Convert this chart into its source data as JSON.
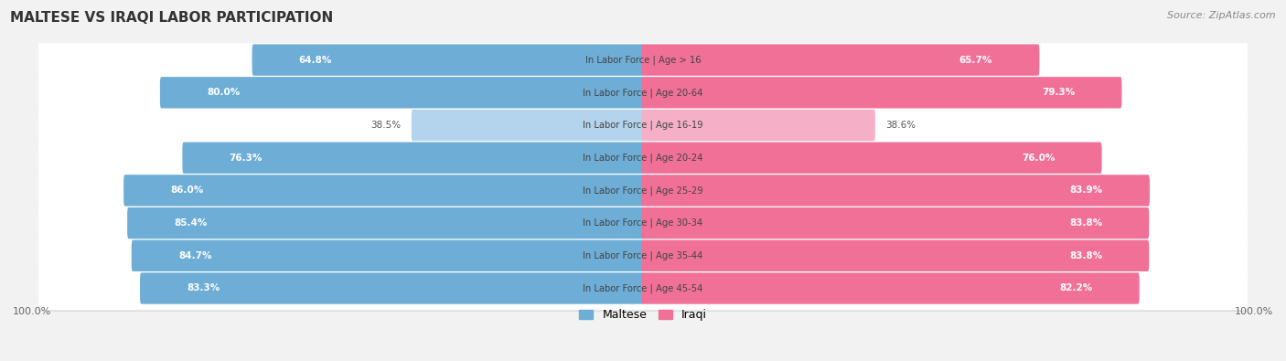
{
  "title": "MALTESE VS IRAQI LABOR PARTICIPATION",
  "source": "Source: ZipAtlas.com",
  "categories": [
    "In Labor Force | Age > 16",
    "In Labor Force | Age 20-64",
    "In Labor Force | Age 16-19",
    "In Labor Force | Age 20-24",
    "In Labor Force | Age 25-29",
    "In Labor Force | Age 30-34",
    "In Labor Force | Age 35-44",
    "In Labor Force | Age 45-54"
  ],
  "maltese": [
    64.8,
    80.0,
    38.5,
    76.3,
    86.0,
    85.4,
    84.7,
    83.3
  ],
  "iraqi": [
    65.7,
    79.3,
    38.6,
    76.0,
    83.9,
    83.8,
    83.8,
    82.2
  ],
  "maltese_color": "#6dadd6",
  "maltese_color_light": "#b3d4ec",
  "iraqi_color": "#f07098",
  "iraqi_color_light": "#f5b0c8",
  "label_color_dark": "#555555",
  "bg_color": "#f2f2f2",
  "row_bg_color": "#e8e8e8",
  "row_inner_color": "#f8f8f8",
  "max_val": 100.0,
  "legend_maltese": "Maltese",
  "legend_iraqi": "Iraqi"
}
